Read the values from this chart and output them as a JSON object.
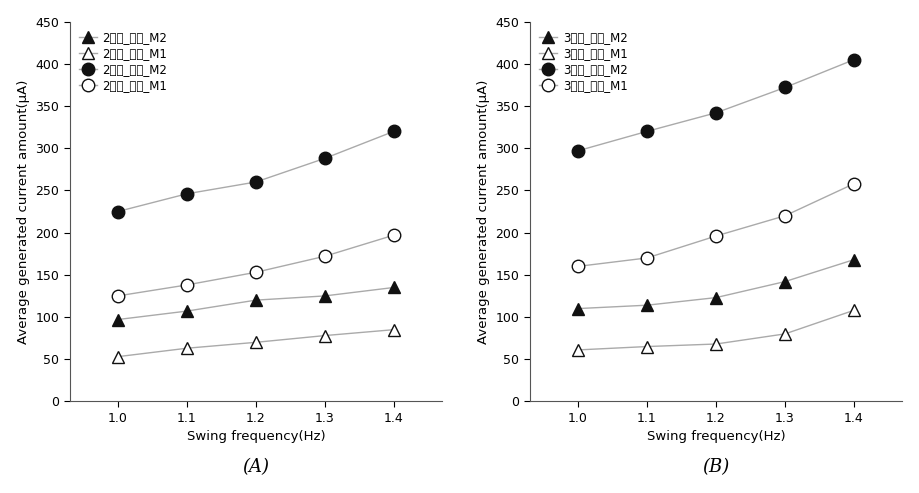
{
  "x": [
    1.0,
    1.1,
    1.2,
    1.3,
    1.4
  ],
  "panel_A": {
    "series": [
      {
        "label": "2합사_병렬_M2",
        "marker": "^",
        "filled": true,
        "values": [
          97,
          107,
          120,
          125,
          135
        ]
      },
      {
        "label": "2합사_병렬_M1",
        "marker": "^",
        "filled": false,
        "values": [
          53,
          63,
          70,
          78,
          85
        ]
      },
      {
        "label": "2합사_직렬_M2",
        "marker": "o",
        "filled": true,
        "values": [
          225,
          246,
          260,
          288,
          320
        ]
      },
      {
        "label": "2합사_직렬_M1",
        "marker": "o",
        "filled": false,
        "values": [
          125,
          138,
          153,
          172,
          197
        ]
      }
    ],
    "label": "(A)"
  },
  "panel_B": {
    "series": [
      {
        "label": "3합사_병렬_M2",
        "marker": "^",
        "filled": true,
        "values": [
          110,
          114,
          123,
          142,
          168
        ]
      },
      {
        "label": "3합사_병렬_M1",
        "marker": "^",
        "filled": false,
        "values": [
          61,
          65,
          68,
          80,
          108
        ]
      },
      {
        "label": "3합사_직렬_M2",
        "marker": "o",
        "filled": true,
        "values": [
          297,
          320,
          342,
          372,
          405
        ]
      },
      {
        "label": "3합사_직렬_M1",
        "marker": "o",
        "filled": false,
        "values": [
          160,
          170,
          196,
          220,
          258
        ]
      }
    ],
    "label": "(B)"
  },
  "ylabel": "Average generated current amount(μA)",
  "xlabel": "Swing frequency(Hz)",
  "ylim": [
    0,
    450
  ],
  "yticks": [
    0,
    50,
    100,
    150,
    200,
    250,
    300,
    350,
    400,
    450
  ],
  "xticks": [
    1.0,
    1.1,
    1.2,
    1.3,
    1.4
  ],
  "line_color": "#aaaaaa",
  "filled_color": "#111111",
  "empty_color": "#ffffff",
  "edge_color": "#111111",
  "marker_size": 9,
  "linewidth": 1.0,
  "legend_fontsize": 8.5,
  "axis_fontsize": 9.5,
  "tick_fontsize": 9,
  "label_fontsize": 13
}
